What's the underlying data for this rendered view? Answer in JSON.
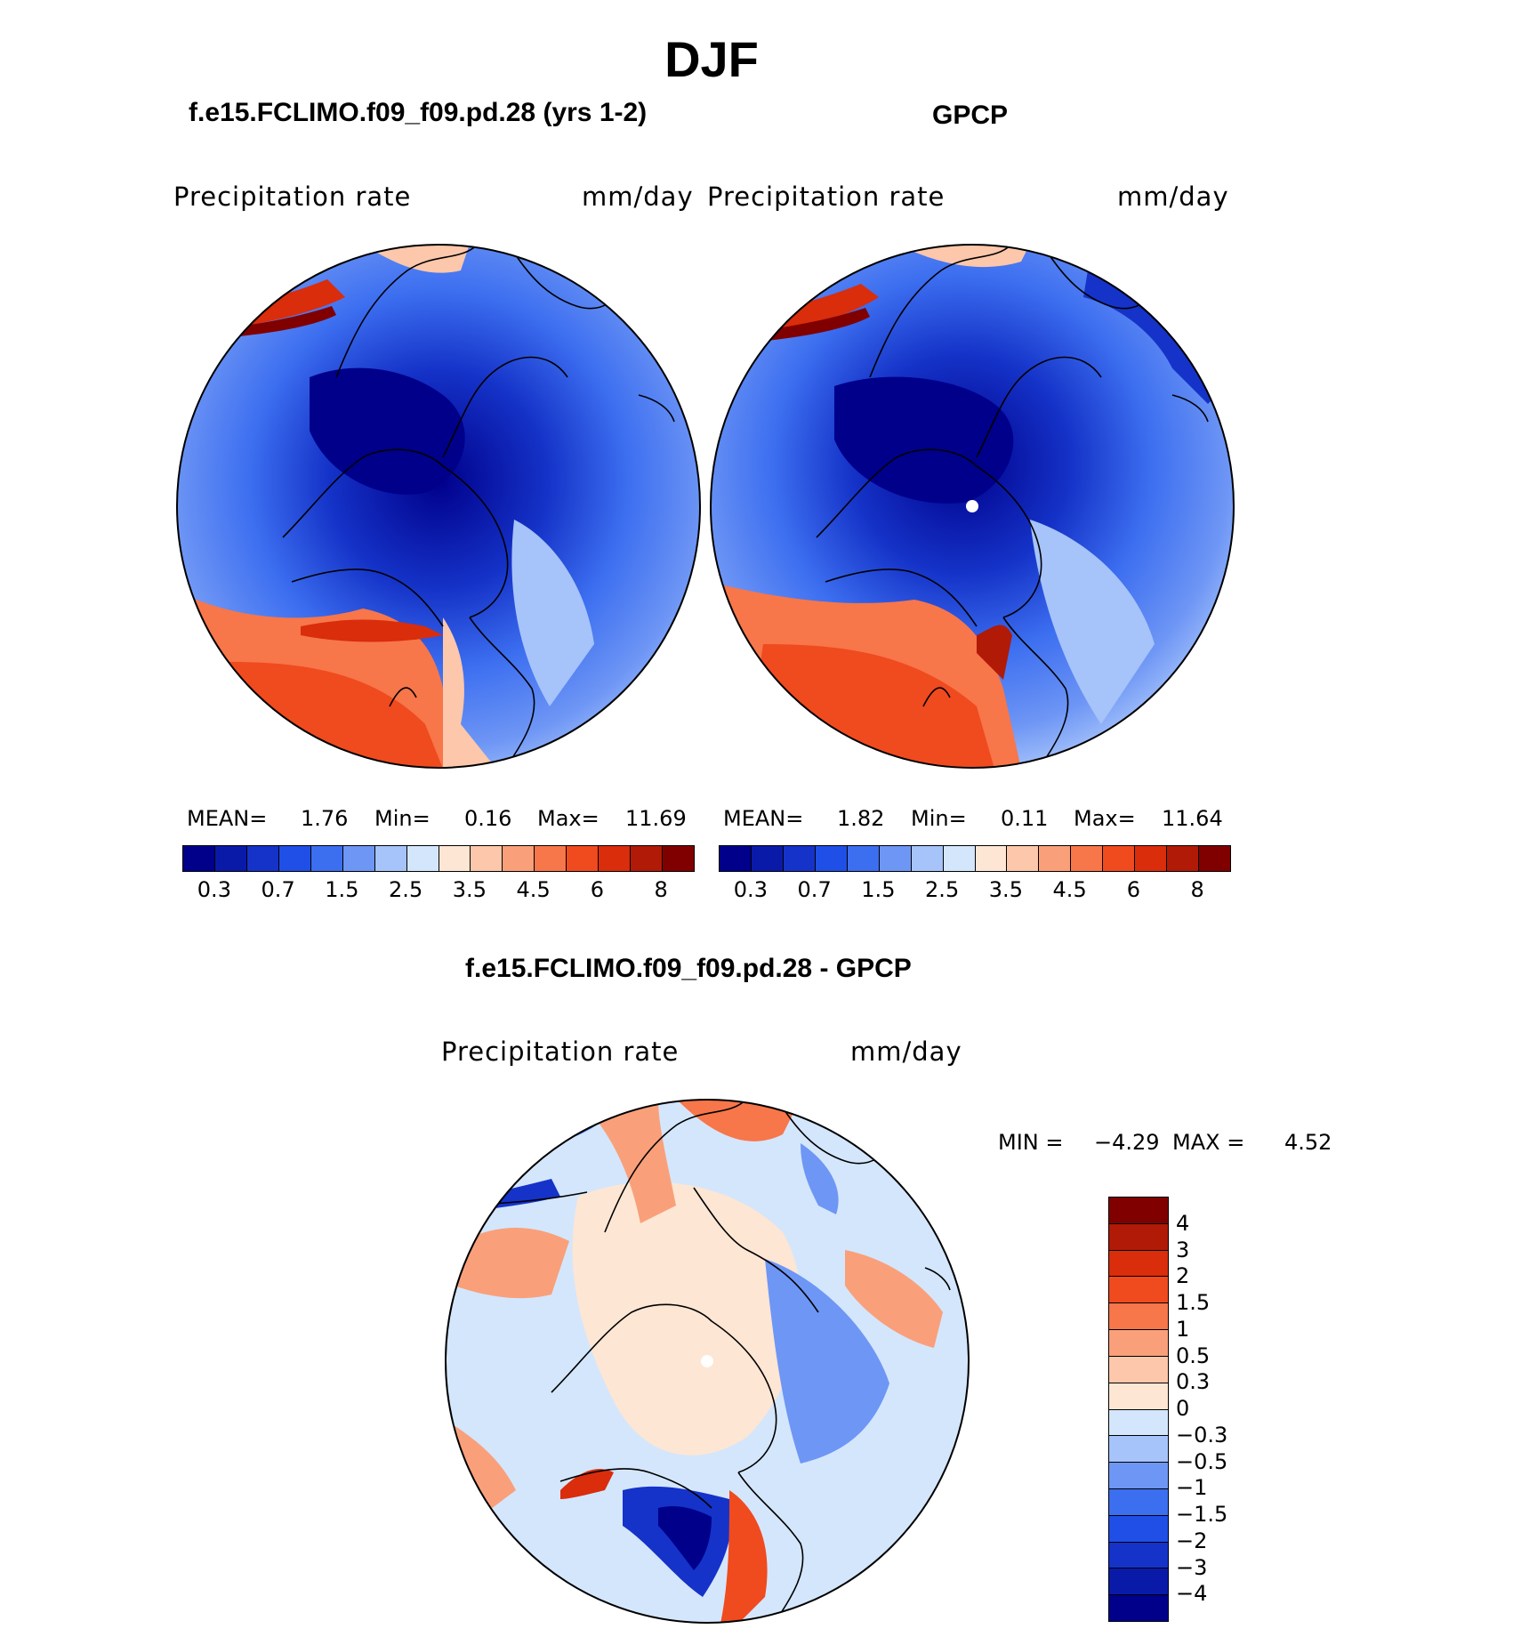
{
  "title": "DJF",
  "panel_left": {
    "subtitle": "f.e15.FCLIMO.f09_f09.pd.28 (yrs 1-2)",
    "variable": "Precipitation  rate",
    "units": "mm/day",
    "mean_label": "MEAN=",
    "mean_value": "1.76",
    "min_label": "Min=",
    "min_value": "0.16",
    "max_label": "Max=",
    "max_value": "11.69"
  },
  "panel_right": {
    "subtitle": "GPCP",
    "variable": "Precipitation  rate",
    "units": "mm/day",
    "mean_label": "MEAN=",
    "mean_value": "1.82",
    "min_label": "Min=",
    "min_value": "0.11",
    "max_label": "Max=",
    "max_value": "11.64"
  },
  "panel_diff": {
    "subtitle": "f.e15.FCLIMO.f09_f09.pd.28 - GPCP",
    "variable": "Precipitation  rate",
    "units": "mm/day",
    "min_label": "MIN =",
    "min_value": "−4.29",
    "max_label": "MAX =",
    "max_value": "4.52"
  },
  "precip_colorbar": {
    "ticks": [
      "0.3",
      "0.7",
      "1.5",
      "2.5",
      "3.5",
      "4.5",
      "6",
      "8"
    ],
    "colors": [
      "#00008b",
      "#0a1aa8",
      "#1533c8",
      "#1f4fe6",
      "#3c6ef0",
      "#6e96f5",
      "#a6c3fa",
      "#d4e6fc",
      "#fde6d4",
      "#fcc7aa",
      "#f9a07a",
      "#f7764a",
      "#f04a1f",
      "#d92d0c",
      "#b01a06",
      "#800000"
    ]
  },
  "diff_colorbar": {
    "ticks": [
      "4",
      "3",
      "2",
      "1.5",
      "1",
      "0.5",
      "0.3",
      "0",
      "−0.3",
      "−0.5",
      "−1",
      "−1.5",
      "−2",
      "−3",
      "−4"
    ],
    "colors": [
      "#800000",
      "#b01a06",
      "#d92d0c",
      "#f04a1f",
      "#f7764a",
      "#f9a07a",
      "#fcc7aa",
      "#fde6d4",
      "#d4e6fc",
      "#a6c3fa",
      "#6e96f5",
      "#3c6ef0",
      "#1f4fe6",
      "#1533c8",
      "#0a1aa8",
      "#00008b"
    ]
  }
}
